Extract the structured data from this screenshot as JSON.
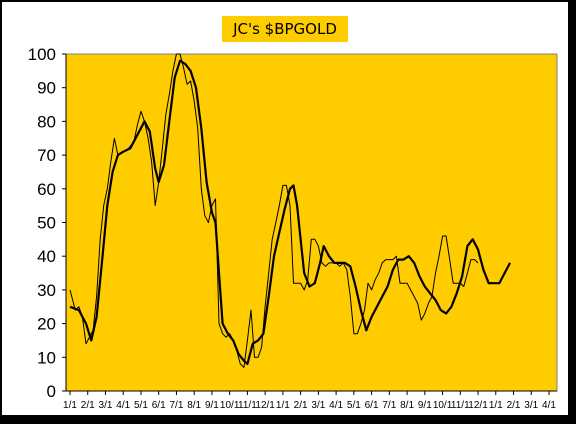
{
  "chart_data": {
    "type": "line",
    "title": "JC's $BPGOLD",
    "ylim": [
      0,
      100
    ],
    "y_ticks": [
      "0",
      "10",
      "20",
      "30",
      "40",
      "50",
      "60",
      "70",
      "80",
      "90",
      "100"
    ],
    "x_tick_labels": [
      "1/1",
      "2/1",
      "3/1",
      "4/1",
      "5/1",
      "6/1",
      "7/1",
      "8/1",
      "9/1",
      "10/1",
      "11/1",
      "12/1",
      "1/1",
      "2/1",
      "3/1",
      "4/1",
      "5/1",
      "6/1",
      "7/1",
      "8/1",
      "9/1",
      "10/1",
      "11/1",
      "12/1",
      "1/1",
      "2/1",
      "3/1",
      "4/1"
    ],
    "grid": false,
    "colors": {
      "plot_background": "#FFCC00",
      "line": "#000000",
      "frame": "#000000"
    },
    "series": [
      {
        "style": "thin",
        "values": [
          [
            0,
            30
          ],
          [
            0.3,
            24
          ],
          [
            0.5,
            25
          ],
          [
            0.7,
            22
          ],
          [
            0.9,
            14
          ],
          [
            1.1,
            16
          ],
          [
            1.3,
            18
          ],
          [
            1.5,
            28
          ],
          [
            1.7,
            45
          ],
          [
            1.9,
            55
          ],
          [
            2.1,
            60
          ],
          [
            2.3,
            68
          ],
          [
            2.5,
            75
          ],
          [
            2.7,
            70
          ],
          [
            3.0,
            71
          ],
          [
            3.3,
            72
          ],
          [
            3.6,
            74
          ],
          [
            3.8,
            79
          ],
          [
            4.0,
            83
          ],
          [
            4.2,
            80
          ],
          [
            4.4,
            75
          ],
          [
            4.6,
            68
          ],
          [
            4.8,
            55
          ],
          [
            5.0,
            62
          ],
          [
            5.2,
            72
          ],
          [
            5.4,
            82
          ],
          [
            5.6,
            88
          ],
          [
            5.8,
            95
          ],
          [
            6.0,
            100
          ],
          [
            6.2,
            100
          ],
          [
            6.4,
            96
          ],
          [
            6.6,
            91
          ],
          [
            6.8,
            92
          ],
          [
            7.0,
            86
          ],
          [
            7.2,
            78
          ],
          [
            7.4,
            60
          ],
          [
            7.6,
            52
          ],
          [
            7.8,
            50
          ],
          [
            8.0,
            55
          ],
          [
            8.2,
            57
          ],
          [
            8.4,
            20
          ],
          [
            8.6,
            17
          ],
          [
            8.8,
            16
          ],
          [
            9.0,
            17
          ],
          [
            9.2,
            15
          ],
          [
            9.4,
            12
          ],
          [
            9.6,
            8
          ],
          [
            9.8,
            7
          ],
          [
            10.0,
            15
          ],
          [
            10.2,
            24
          ],
          [
            10.4,
            10
          ],
          [
            10.6,
            10
          ],
          [
            10.8,
            13
          ],
          [
            11.0,
            25
          ],
          [
            11.2,
            35
          ],
          [
            11.4,
            45
          ],
          [
            11.6,
            50
          ],
          [
            11.8,
            55
          ],
          [
            12.0,
            61
          ],
          [
            12.2,
            61
          ],
          [
            12.4,
            55
          ],
          [
            12.6,
            32
          ],
          [
            12.8,
            32
          ],
          [
            13.0,
            32
          ],
          [
            13.2,
            30
          ],
          [
            13.4,
            33
          ],
          [
            13.6,
            45
          ],
          [
            13.8,
            45
          ],
          [
            14.0,
            43
          ],
          [
            14.2,
            38
          ],
          [
            14.4,
            37
          ],
          [
            14.6,
            38
          ],
          [
            14.8,
            38
          ],
          [
            15.0,
            38
          ],
          [
            15.2,
            37
          ],
          [
            15.4,
            38
          ],
          [
            15.6,
            36
          ],
          [
            15.8,
            28
          ],
          [
            16.0,
            17
          ],
          [
            16.2,
            17
          ],
          [
            16.4,
            20
          ],
          [
            16.6,
            24
          ],
          [
            16.8,
            32
          ],
          [
            17.0,
            30
          ],
          [
            17.2,
            33
          ],
          [
            17.4,
            35
          ],
          [
            17.6,
            38
          ],
          [
            17.8,
            39
          ],
          [
            18.0,
            39
          ],
          [
            18.2,
            39
          ],
          [
            18.4,
            40
          ],
          [
            18.6,
            32
          ],
          [
            18.8,
            32
          ],
          [
            19.0,
            32
          ],
          [
            19.2,
            30
          ],
          [
            19.4,
            28
          ],
          [
            19.6,
            26
          ],
          [
            19.8,
            21
          ],
          [
            20.0,
            23
          ],
          [
            20.2,
            26
          ],
          [
            20.4,
            28
          ],
          [
            20.6,
            35
          ],
          [
            20.8,
            40
          ],
          [
            21.0,
            46
          ],
          [
            21.2,
            46
          ],
          [
            21.4,
            39
          ],
          [
            21.6,
            32
          ],
          [
            21.8,
            32
          ],
          [
            22.0,
            32
          ],
          [
            22.2,
            31
          ],
          [
            22.4,
            35
          ],
          [
            22.6,
            39
          ],
          [
            22.8,
            39
          ],
          [
            23.0,
            38
          ]
        ]
      },
      {
        "style": "thick",
        "values": [
          [
            0,
            25
          ],
          [
            0.5,
            24
          ],
          [
            0.9,
            20
          ],
          [
            1.2,
            15
          ],
          [
            1.5,
            22
          ],
          [
            1.8,
            38
          ],
          [
            2.1,
            55
          ],
          [
            2.4,
            65
          ],
          [
            2.7,
            70
          ],
          [
            3.0,
            71
          ],
          [
            3.4,
            72
          ],
          [
            3.8,
            76
          ],
          [
            4.2,
            80
          ],
          [
            4.5,
            77
          ],
          [
            4.8,
            66
          ],
          [
            5.0,
            62
          ],
          [
            5.3,
            67
          ],
          [
            5.6,
            80
          ],
          [
            5.9,
            93
          ],
          [
            6.2,
            98
          ],
          [
            6.5,
            97
          ],
          [
            6.8,
            95
          ],
          [
            7.1,
            90
          ],
          [
            7.4,
            78
          ],
          [
            7.7,
            62
          ],
          [
            8.0,
            53
          ],
          [
            8.2,
            50
          ],
          [
            8.4,
            35
          ],
          [
            8.6,
            20
          ],
          [
            8.9,
            17
          ],
          [
            9.2,
            15
          ],
          [
            9.5,
            11
          ],
          [
            9.8,
            9
          ],
          [
            10.0,
            8
          ],
          [
            10.3,
            14
          ],
          [
            10.6,
            15
          ],
          [
            10.9,
            17
          ],
          [
            11.2,
            28
          ],
          [
            11.5,
            40
          ],
          [
            11.8,
            47
          ],
          [
            12.1,
            54
          ],
          [
            12.4,
            60
          ],
          [
            12.6,
            61
          ],
          [
            12.8,
            55
          ],
          [
            13.0,
            45
          ],
          [
            13.2,
            35
          ],
          [
            13.5,
            31
          ],
          [
            13.8,
            32
          ],
          [
            14.1,
            38
          ],
          [
            14.3,
            43
          ],
          [
            14.6,
            40
          ],
          [
            14.9,
            38
          ],
          [
            15.2,
            38
          ],
          [
            15.5,
            38
          ],
          [
            15.8,
            37
          ],
          [
            16.1,
            31
          ],
          [
            16.4,
            24
          ],
          [
            16.7,
            18
          ],
          [
            17.0,
            22
          ],
          [
            17.3,
            25
          ],
          [
            17.6,
            28
          ],
          [
            17.9,
            31
          ],
          [
            18.2,
            36
          ],
          [
            18.5,
            39
          ],
          [
            18.8,
            39
          ],
          [
            19.1,
            40
          ],
          [
            19.4,
            38
          ],
          [
            19.7,
            34
          ],
          [
            20.0,
            31
          ],
          [
            20.3,
            29
          ],
          [
            20.6,
            27
          ],
          [
            20.9,
            24
          ],
          [
            21.2,
            23
          ],
          [
            21.5,
            25
          ],
          [
            21.8,
            29
          ],
          [
            22.1,
            34
          ],
          [
            22.4,
            43
          ],
          [
            22.7,
            45
          ],
          [
            23.0,
            42
          ],
          [
            23.3,
            36
          ],
          [
            23.6,
            32
          ],
          [
            23.9,
            32
          ],
          [
            24.2,
            32
          ],
          [
            24.5,
            35
          ],
          [
            24.8,
            38
          ]
        ]
      }
    ]
  }
}
